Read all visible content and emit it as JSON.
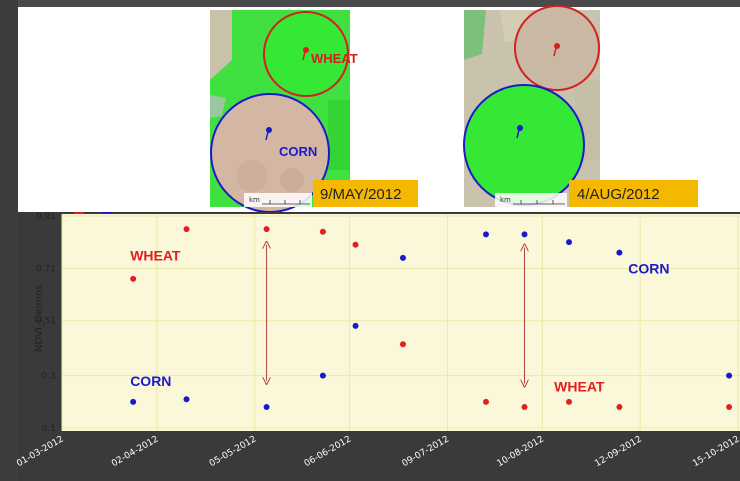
{
  "images": [
    {
      "date_label": "9/MAY/2012",
      "fields": [
        {
          "label": "WHEAT",
          "color": "#d42020",
          "appearance": "green"
        },
        {
          "label": "CORN",
          "color": "#1a1acc",
          "appearance": "bare-soil"
        }
      ],
      "scale_label": "km"
    },
    {
      "date_label": "4/AUG/2012",
      "fields": [
        {
          "label": "",
          "color": "#d42020",
          "appearance": "bare-soil"
        },
        {
          "label": "",
          "color": "#1a1acc",
          "appearance": "green"
        }
      ],
      "scale_label": "km"
    }
  ],
  "colors": {
    "wheat": "#e02020",
    "corn": "#1a1acc",
    "plot_bg": "#fbf8da",
    "grid": "#efe7a8",
    "date_badge": "#f5b800",
    "arrow": "#b04040"
  },
  "chart_data": {
    "type": "scatter",
    "xlabel": "",
    "ylabel": "NDVI_Deimos",
    "ylim": [
      0.1,
      0.91
    ],
    "y_ticks": [
      "0.1",
      "0.3",
      "0.51",
      "0.71",
      "0.91"
    ],
    "x_ticks": [
      "01-03-2012",
      "02-04-2012",
      "05-05-2012",
      "06-06-2012",
      "09-07-2012",
      "10-08-2012",
      "12-09-2012",
      "15-10-2012"
    ],
    "grid": true,
    "series": [
      {
        "name": "WHEAT",
        "color": "#e02020",
        "points": [
          {
            "x": "2012-03-25",
            "y": 0.67
          },
          {
            "x": "2012-04-12",
            "y": 0.86
          },
          {
            "x": "2012-05-09",
            "y": 0.86
          },
          {
            "x": "2012-05-28",
            "y": 0.85
          },
          {
            "x": "2012-06-08",
            "y": 0.8
          },
          {
            "x": "2012-06-24",
            "y": 0.42
          },
          {
            "x": "2012-07-22",
            "y": 0.2
          },
          {
            "x": "2012-08-04",
            "y": 0.18
          },
          {
            "x": "2012-08-19",
            "y": 0.2
          },
          {
            "x": "2012-09-05",
            "y": 0.18
          },
          {
            "x": "2012-10-12",
            "y": 0.18
          }
        ]
      },
      {
        "name": "CORN",
        "color": "#1a1acc",
        "points": [
          {
            "x": "2012-03-25",
            "y": 0.2
          },
          {
            "x": "2012-04-12",
            "y": 0.21
          },
          {
            "x": "2012-05-09",
            "y": 0.18
          },
          {
            "x": "2012-05-28",
            "y": 0.3
          },
          {
            "x": "2012-06-08",
            "y": 0.49
          },
          {
            "x": "2012-06-24",
            "y": 0.75
          },
          {
            "x": "2012-07-22",
            "y": 0.84
          },
          {
            "x": "2012-08-04",
            "y": 0.84
          },
          {
            "x": "2012-08-19",
            "y": 0.81
          },
          {
            "x": "2012-09-05",
            "y": 0.77
          },
          {
            "x": "2012-10-12",
            "y": 0.3
          }
        ]
      }
    ],
    "annotations": [
      {
        "text": "WHEAT",
        "color": "#e02020",
        "x": "2012-03-24",
        "y": 0.74
      },
      {
        "text": "CORN",
        "color": "#1a1acc",
        "x": "2012-03-24",
        "y": 0.26
      },
      {
        "text": "WHEAT",
        "color": "#e02020",
        "x": "2012-08-14",
        "y": 0.24
      },
      {
        "text": "CORN",
        "color": "#1a1acc",
        "x": "2012-09-08",
        "y": 0.69
      }
    ],
    "range_arrows": [
      {
        "x": "2012-05-09",
        "y_top": 0.8,
        "y_bottom": 0.28
      },
      {
        "x": "2012-08-04",
        "y_top": 0.79,
        "y_bottom": 0.27
      }
    ]
  }
}
